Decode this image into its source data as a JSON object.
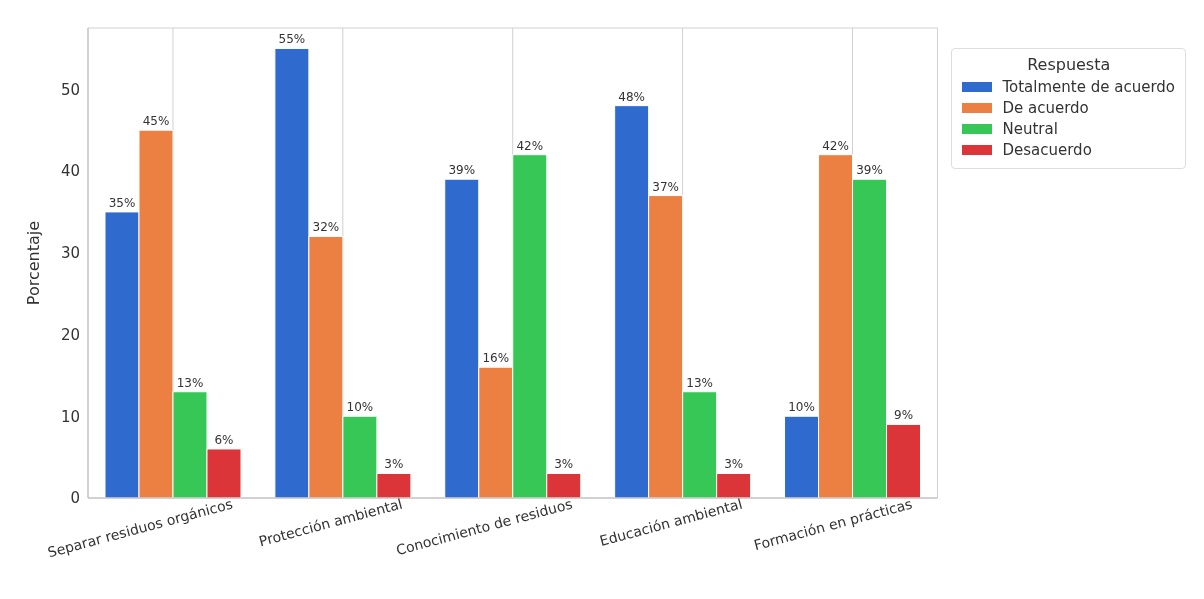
{
  "chart_data": {
    "type": "bar",
    "ylabel": "Porcentaje",
    "legend_title": "Respuesta",
    "categories": [
      "Separar residuos orgánicos",
      "Protección ambiental",
      "Conocimiento de residuos",
      "Educación ambiental",
      "Formación en prácticas"
    ],
    "series": [
      {
        "name": "Totalmente de acuerdo",
        "color": "#2f6bcf",
        "values": [
          35,
          55,
          39,
          48,
          10
        ],
        "value_labels": [
          "35%",
          "55%",
          "39%",
          "48%",
          "10%"
        ]
      },
      {
        "name": "De acuerdo",
        "color": "#eb8042",
        "values": [
          45,
          32,
          16,
          37,
          42
        ],
        "value_labels": [
          "45%",
          "32%",
          "16%",
          "37%",
          "42%"
        ]
      },
      {
        "name": "Neutral",
        "color": "#37c757",
        "values": [
          13,
          10,
          42,
          13,
          39
        ],
        "value_labels": [
          "13%",
          "10%",
          "42%",
          "13%",
          "39%"
        ]
      },
      {
        "name": "Desacuerdo",
        "color": "#dc3539",
        "values": [
          6,
          3,
          3,
          3,
          9
        ],
        "value_labels": [
          "6%",
          "3%",
          "3%",
          "3%",
          "9%"
        ]
      }
    ],
    "ylim": [
      0,
      57.5
    ],
    "yticks": [
      0,
      10,
      20,
      30,
      40,
      50
    ],
    "grid": true,
    "legend": "right"
  }
}
